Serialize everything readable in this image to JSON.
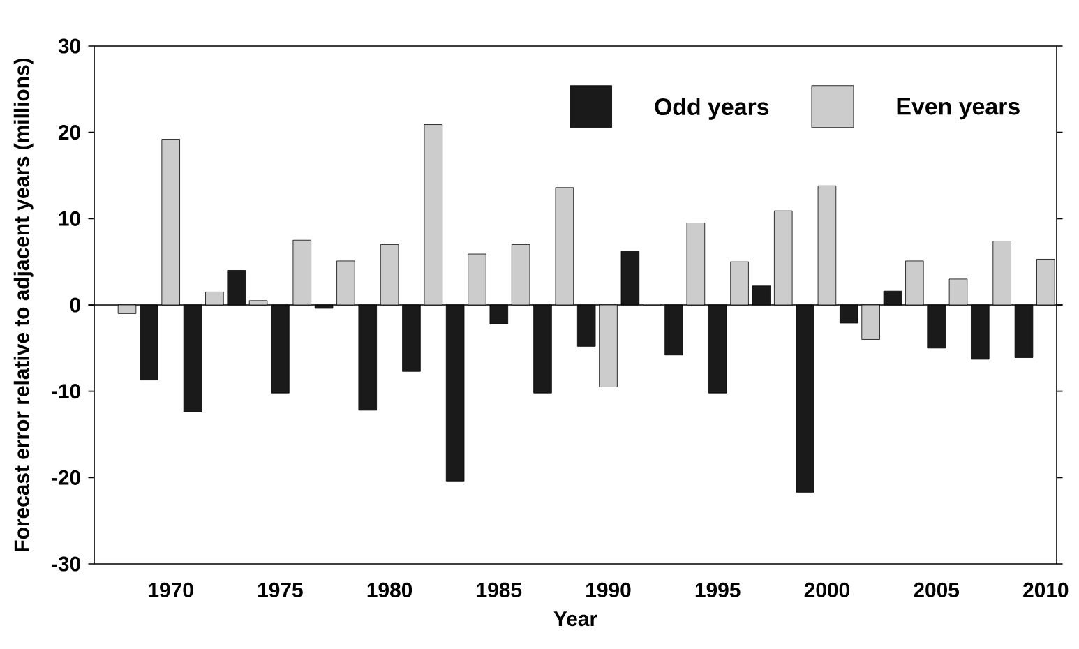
{
  "chart_data": {
    "type": "bar",
    "xlabel": "Year",
    "ylabel": "Forecast error relative to adjacent years (millions)",
    "xlim": [
      1966.5,
      2010.5
    ],
    "xticks": [
      1970,
      1975,
      1980,
      1985,
      1990,
      1995,
      2000,
      2005,
      2010
    ],
    "ylim": [
      -30,
      30
    ],
    "yticks": [
      -30,
      -20,
      -10,
      0,
      10,
      20,
      30
    ],
    "legend": "top right",
    "series": [
      {
        "name": "Odd years",
        "color": "#1a1a1a",
        "x": [
          1969,
          1971,
          1973,
          1975,
          1977,
          1979,
          1981,
          1983,
          1985,
          1987,
          1989,
          1991,
          1993,
          1995,
          1997,
          1999,
          2001,
          2003,
          2005,
          2007,
          2009
        ],
        "values": [
          -8.7,
          -12.4,
          4.0,
          -10.2,
          -0.4,
          -12.2,
          -7.7,
          -20.4,
          -2.2,
          -10.2,
          -4.8,
          6.2,
          -5.8,
          -10.2,
          2.2,
          -21.7,
          -2.1,
          1.6,
          -5.0,
          -6.3,
          -6.1
        ]
      },
      {
        "name": "Even years",
        "color": "#cccccc",
        "x": [
          1968,
          1970,
          1972,
          1974,
          1976,
          1978,
          1980,
          1982,
          1984,
          1986,
          1988,
          1990,
          1992,
          1994,
          1996,
          1998,
          2000,
          2002,
          2004,
          2006,
          2008,
          2010
        ],
        "values": [
          -1.0,
          19.2,
          1.5,
          0.5,
          7.5,
          5.1,
          7.0,
          20.9,
          5.9,
          7.0,
          13.6,
          -9.5,
          0.1,
          9.5,
          5.0,
          10.9,
          13.8,
          -4.0,
          5.1,
          3.0,
          7.4,
          5.3
        ]
      }
    ]
  }
}
